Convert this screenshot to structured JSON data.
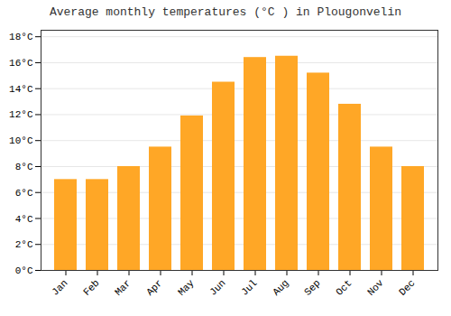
{
  "chart_data": {
    "type": "bar",
    "title": "Average monthly temperatures (°C ) in Plougonvelin",
    "categories": [
      "Jan",
      "Feb",
      "Mar",
      "Apr",
      "May",
      "Jun",
      "Jul",
      "Aug",
      "Sep",
      "Oct",
      "Nov",
      "Dec"
    ],
    "values": [
      7.0,
      7.0,
      8.0,
      9.5,
      11.9,
      14.5,
      16.4,
      16.5,
      15.2,
      12.8,
      9.5,
      8.0
    ],
    "color": "#FFA726",
    "ylim": [
      0,
      18.5
    ],
    "yticks": [
      {
        "value": 0,
        "label": "0°C"
      },
      {
        "value": 2,
        "label": "2°C"
      },
      {
        "value": 4,
        "label": "4°C"
      },
      {
        "value": 6,
        "label": "6°C"
      },
      {
        "value": 8,
        "label": "8°C"
      },
      {
        "value": 10,
        "label": "10°C"
      },
      {
        "value": 12,
        "label": "12°C"
      },
      {
        "value": 14,
        "label": "14°C"
      },
      {
        "value": 16,
        "label": "16°C"
      },
      {
        "value": 18,
        "label": "18°C"
      }
    ],
    "grid": true
  }
}
